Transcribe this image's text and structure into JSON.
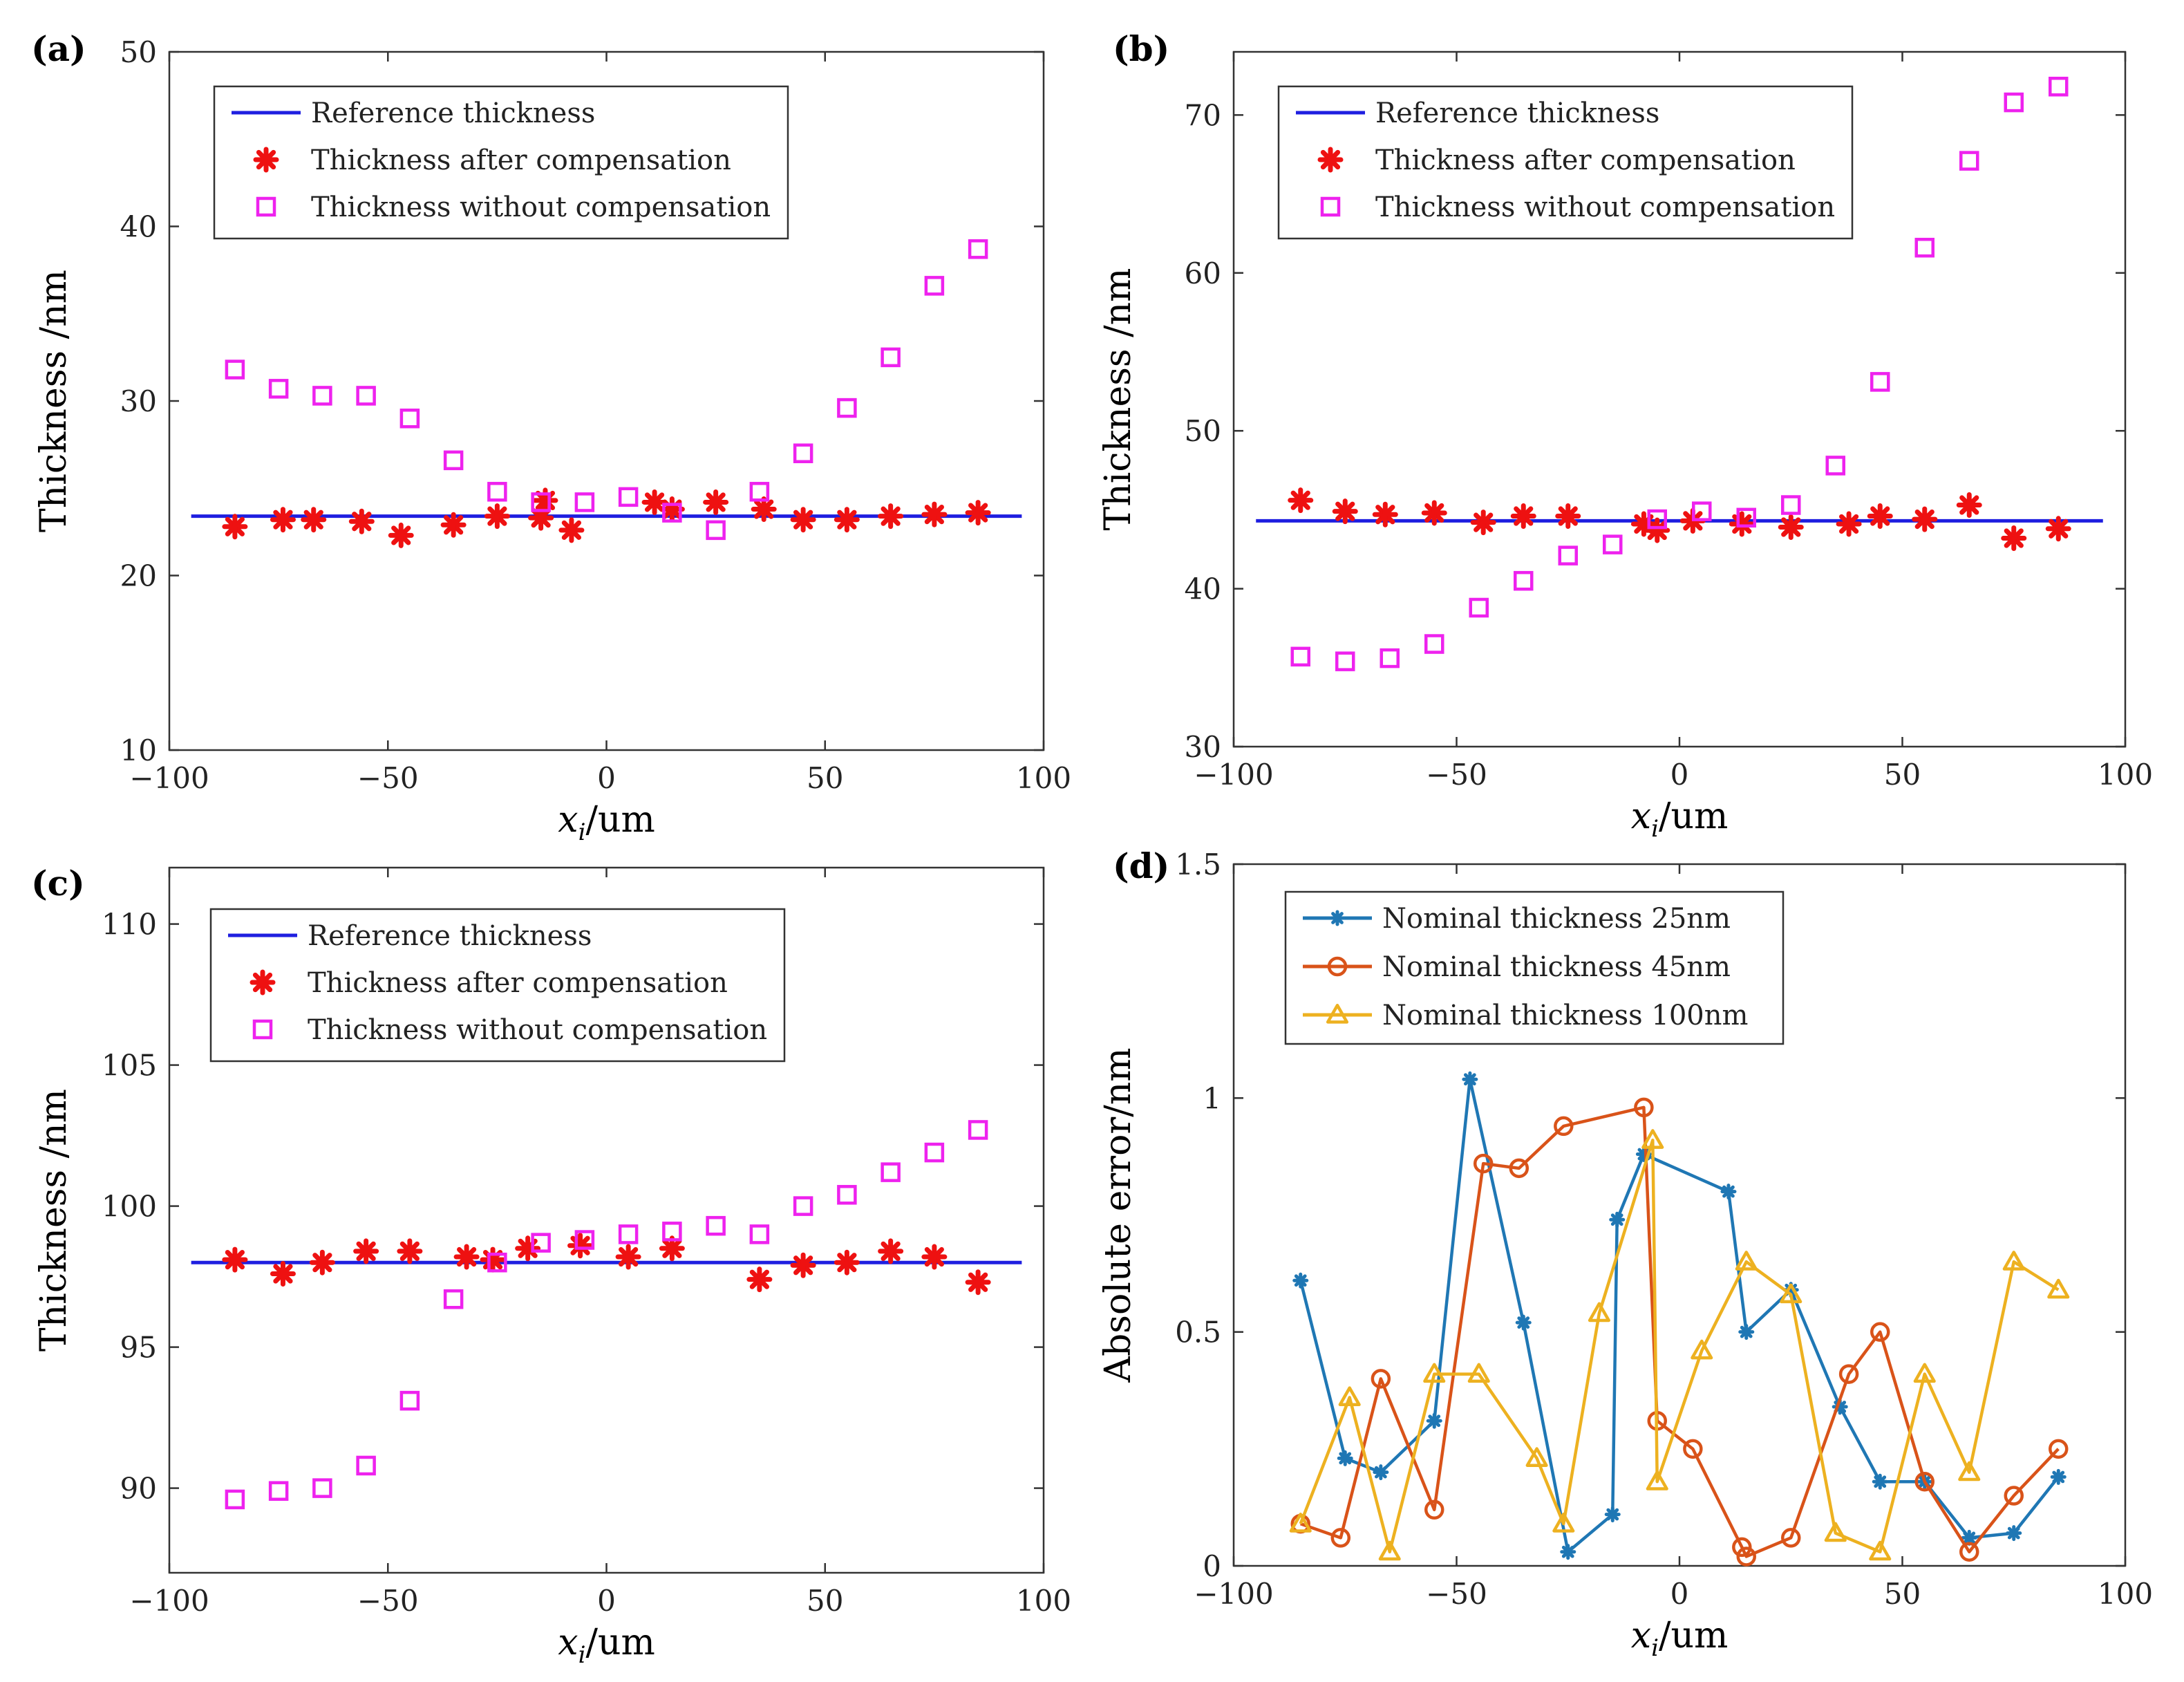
{
  "chart_data": [
    {
      "panel": "(a)",
      "type": "scatter",
      "xlabel_main": "x",
      "xlabel_sub": "i",
      "xlabel_rest": "/um",
      "ylabel": "Thickness /nm",
      "xlim": [
        -100,
        100
      ],
      "ylim": [
        10,
        50
      ],
      "xticks": [
        -100,
        -50,
        0,
        50,
        100
      ],
      "yticks": [
        10,
        20,
        30,
        40,
        50
      ],
      "series": [
        {
          "name": "Reference thickness",
          "kind": "hline",
          "color": "#1f1fe0",
          "y": 23.4,
          "x_range": [
            -95,
            95
          ]
        },
        {
          "name": "Thickness after compensation",
          "kind": "star",
          "color": "#ee1111",
          "x": [
            -85,
            -74,
            -67,
            -56,
            -47,
            -35,
            -25,
            -15,
            -14,
            -8,
            11,
            15,
            25,
            36,
            45,
            55,
            65,
            75,
            85
          ],
          "y": [
            22.8,
            23.2,
            23.2,
            23.1,
            22.3,
            22.9,
            23.4,
            23.3,
            24.3,
            22.6,
            24.2,
            23.8,
            24.2,
            23.8,
            23.2,
            23.2,
            23.4,
            23.5,
            23.6
          ]
        },
        {
          "name": "Thickness without compensation",
          "kind": "square",
          "color": "#ee22ee",
          "x": [
            -85,
            -75,
            -65,
            -55,
            -45,
            -35,
            -25,
            -15,
            -5,
            5,
            15,
            25,
            35,
            45,
            55,
            65,
            75,
            85
          ],
          "y": [
            31.8,
            30.7,
            30.3,
            30.3,
            29.0,
            26.6,
            24.8,
            24.2,
            24.2,
            24.5,
            23.6,
            22.6,
            24.8,
            27.0,
            29.6,
            32.5,
            36.6,
            38.7
          ]
        }
      ],
      "legend_position": "top-left"
    },
    {
      "panel": "(b)",
      "type": "scatter",
      "xlabel_main": "x",
      "xlabel_sub": "i",
      "xlabel_rest": "/um",
      "ylabel": "Thickness /nm",
      "xlim": [
        -100,
        100
      ],
      "ylim": [
        30,
        74
      ],
      "xticks": [
        -100,
        -50,
        0,
        50,
        100
      ],
      "yticks": [
        30,
        40,
        50,
        60,
        70
      ],
      "series": [
        {
          "name": "Reference thickness",
          "kind": "hline",
          "color": "#1f1fe0",
          "y": 44.3,
          "x_range": [
            -95,
            95
          ]
        },
        {
          "name": "Thickness after compensation",
          "kind": "star",
          "color": "#ee1111",
          "x": [
            -85,
            -75,
            -66,
            -55,
            -44,
            -35,
            -25,
            -8,
            -5,
            3,
            14,
            25,
            38,
            45,
            55,
            65,
            75,
            85
          ],
          "y": [
            45.6,
            44.9,
            44.7,
            44.8,
            44.2,
            44.6,
            44.6,
            44.1,
            43.7,
            44.3,
            44.1,
            43.9,
            44.1,
            44.6,
            44.4,
            45.3,
            43.2,
            43.8
          ]
        },
        {
          "name": "Thickness without compensation",
          "kind": "square",
          "color": "#ee22ee",
          "x": [
            -85,
            -75,
            -65,
            -55,
            -45,
            -35,
            -25,
            -15,
            -5,
            5,
            15,
            25,
            35,
            45,
            55,
            65,
            75,
            85
          ],
          "y": [
            35.7,
            35.4,
            35.6,
            36.5,
            38.8,
            40.5,
            42.1,
            42.8,
            44.4,
            44.9,
            44.5,
            45.3,
            47.8,
            53.1,
            61.6,
            67.1,
            70.8,
            71.8
          ]
        }
      ],
      "legend_position": "top-left"
    },
    {
      "panel": "(c)",
      "type": "scatter",
      "xlabel_main": "x",
      "xlabel_sub": "i",
      "xlabel_rest": "/um",
      "ylabel": "Thickness /nm",
      "xlim": [
        -100,
        100
      ],
      "ylim": [
        87,
        112
      ],
      "xticks": [
        -100,
        -50,
        0,
        50,
        100
      ],
      "yticks": [
        90,
        95,
        100,
        105,
        110
      ],
      "series": [
        {
          "name": "Reference thickness",
          "kind": "hline",
          "color": "#1f1fe0",
          "y": 98.0,
          "x_range": [
            -95,
            95
          ]
        },
        {
          "name": "Thickness after compensation",
          "kind": "star",
          "color": "#ee1111",
          "x": [
            -85,
            -74,
            -65,
            -55,
            -45,
            -32,
            -26,
            -18,
            -6,
            5,
            15,
            35,
            45,
            55,
            65,
            75,
            85
          ],
          "y": [
            98.1,
            97.6,
            98.0,
            98.4,
            98.4,
            98.2,
            98.1,
            98.5,
            98.6,
            98.2,
            98.5,
            97.4,
            97.9,
            98.0,
            98.4,
            98.2,
            97.3
          ]
        },
        {
          "name": "Thickness without compensation",
          "kind": "square",
          "color": "#ee22ee",
          "x": [
            -85,
            -75,
            -65,
            -55,
            -45,
            -35,
            -25,
            -15,
            -5,
            5,
            15,
            25,
            35,
            45,
            55,
            65,
            75,
            85
          ],
          "y": [
            89.6,
            89.9,
            90.0,
            90.8,
            93.1,
            96.7,
            98.0,
            98.7,
            98.8,
            99.0,
            99.1,
            99.3,
            99.0,
            100.0,
            100.4,
            101.2,
            101.9,
            102.7
          ]
        }
      ],
      "legend_position": "top-left"
    },
    {
      "panel": "(d)",
      "type": "line",
      "xlabel_main": "x",
      "xlabel_sub": "i",
      "xlabel_rest": "/um",
      "ylabel": "Absolute error/nm",
      "xlim": [
        -100,
        100
      ],
      "ylim": [
        0,
        1.5
      ],
      "xticks": [
        -100,
        -50,
        0,
        50,
        100
      ],
      "yticks": [
        0,
        0.5,
        1,
        1.5
      ],
      "ytick_labels": [
        "0",
        "0.5",
        "1",
        "1.5"
      ],
      "series": [
        {
          "name": "Nominal thickness 25nm",
          "kind": "line-star",
          "color": "#1f77b4",
          "x": [
            -85,
            -75,
            -67,
            -55,
            -47,
            -35,
            -25,
            -15,
            -14,
            -8,
            11,
            15,
            25,
            36,
            45,
            55,
            65,
            75,
            85
          ],
          "y": [
            0.61,
            0.23,
            0.2,
            0.31,
            1.04,
            0.52,
            0.03,
            0.11,
            0.74,
            0.88,
            0.8,
            0.5,
            0.59,
            0.34,
            0.18,
            0.18,
            0.06,
            0.07,
            0.19
          ]
        },
        {
          "name": "Nominal thickness 45nm",
          "kind": "line-circle",
          "color": "#d95319",
          "x": [
            -85,
            -76,
            -67,
            -55,
            -44,
            -36,
            -26,
            -8,
            -5,
            3,
            14,
            15,
            25,
            38,
            45,
            55,
            65,
            75,
            85
          ],
          "y": [
            0.09,
            0.06,
            0.4,
            0.12,
            0.86,
            0.85,
            0.94,
            0.98,
            0.31,
            0.25,
            0.04,
            0.02,
            0.06,
            0.41,
            0.5,
            0.18,
            0.03,
            0.15,
            0.25
          ]
        },
        {
          "name": "Nominal thickness 100nm",
          "kind": "line-triangle",
          "color": "#edb120",
          "x": [
            -85,
            -74,
            -65,
            -55,
            -45,
            -32,
            -26,
            -18,
            -6,
            -5,
            5,
            15,
            25,
            35,
            45,
            55,
            65,
            75,
            85
          ],
          "y": [
            0.09,
            0.36,
            0.03,
            0.41,
            0.41,
            0.23,
            0.09,
            0.54,
            0.91,
            0.18,
            0.46,
            0.65,
            0.58,
            0.07,
            0.03,
            0.41,
            0.2,
            0.65,
            0.59
          ]
        }
      ],
      "legend_position": "top-left"
    }
  ]
}
